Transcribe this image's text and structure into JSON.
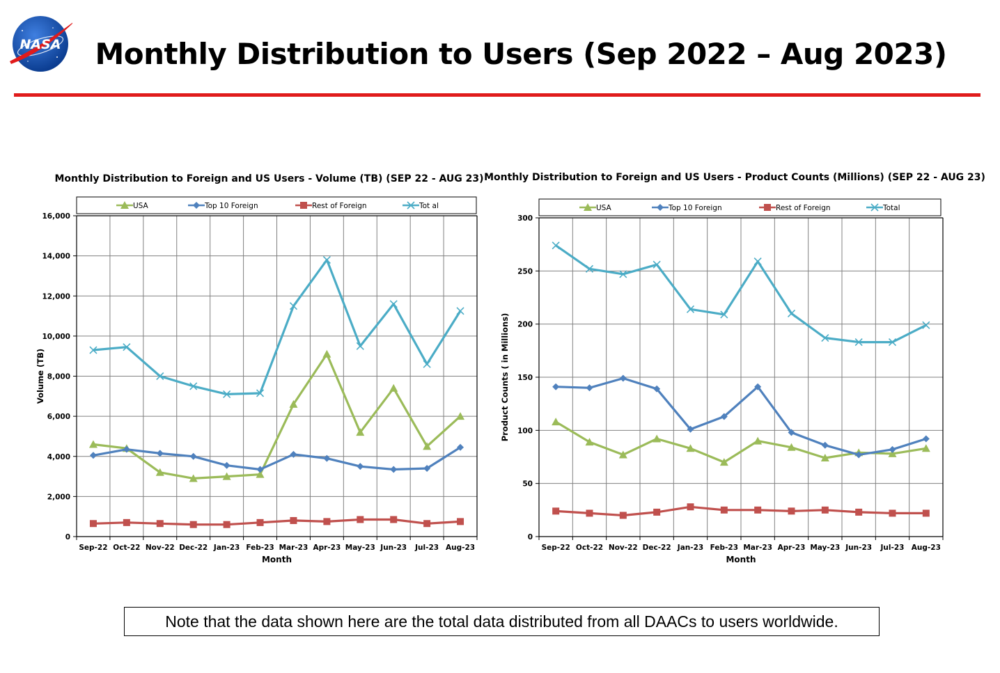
{
  "header": {
    "logo_text": "NASA",
    "title": "Monthly Distribution to Users (Sep 2022 – Aug 2023)",
    "rule_color": "#e01b1b"
  },
  "note": "Note that the data shown here are the total data distributed from all DAACs to users worldwide.",
  "chart_data": [
    {
      "type": "line",
      "title": "Monthly Distribution to Foreign and US Users - Volume  (TB) (SEP 22 - AUG 23)",
      "xlabel": "Month",
      "ylabel": "Volume (TB)",
      "categories": [
        "Sep-22",
        "Oct-22",
        "Nov-22",
        "Dec-22",
        "Jan-23",
        "Feb-23",
        "Mar-23",
        "Apr-23",
        "May-23",
        "Jun-23",
        "Jul-23",
        "Aug-23"
      ],
      "ylim": [
        0,
        16000
      ],
      "yticks": [
        0,
        2000,
        4000,
        6000,
        8000,
        10000,
        12000,
        14000,
        16000
      ],
      "ytick_labels": [
        "0",
        "2,000",
        "4,000",
        "6,000",
        "8,000",
        "10,000",
        "12,000",
        "14,000",
        "16,000"
      ],
      "grid": true,
      "legend": "top",
      "series": [
        {
          "name": "USA",
          "color": "#9bbb59",
          "marker": "triangle",
          "values": [
            4600,
            4400,
            3200,
            2900,
            3000,
            3100,
            6600,
            9100,
            5200,
            7400,
            4500,
            6000
          ]
        },
        {
          "name": "Top  10 Foreign",
          "color": "#4f81bd",
          "marker": "diamond",
          "values": [
            4050,
            4350,
            4150,
            4000,
            3550,
            3350,
            4100,
            3900,
            3500,
            3350,
            3400,
            4450
          ]
        },
        {
          "name": "Rest of Foreign",
          "color": "#c0504d",
          "marker": "square",
          "values": [
            650,
            700,
            650,
            600,
            600,
            700,
            800,
            750,
            850,
            850,
            650,
            750
          ]
        },
        {
          "name": "Tot al",
          "color": "#4bacc6",
          "marker": "x",
          "values": [
            9300,
            9450,
            8000,
            7500,
            7100,
            7150,
            11500,
            13800,
            9500,
            11600,
            8600,
            11250
          ]
        }
      ]
    },
    {
      "type": "line",
      "title": "Monthly Distribution to Foreign and US Users - Product Counts (Millions) (SEP 22 - AUG 23)",
      "xlabel": "Month",
      "ylabel": "Product Counts ( in Millions)",
      "categories": [
        "Sep-22",
        "Oct-22",
        "Nov-22",
        "Dec-22",
        "Jan-23",
        "Feb-23",
        "Mar-23",
        "Apr-23",
        "May-23",
        "Jun-23",
        "Jul-23",
        "Aug-23"
      ],
      "ylim": [
        0,
        300
      ],
      "yticks": [
        0,
        50,
        100,
        150,
        200,
        250,
        300
      ],
      "ytick_labels": [
        "0",
        "50",
        "100",
        "150",
        "200",
        "250",
        "300"
      ],
      "grid": true,
      "legend": "top",
      "series": [
        {
          "name": "USA",
          "color": "#9bbb59",
          "marker": "triangle",
          "values": [
            108,
            89,
            77,
            92,
            83,
            70,
            90,
            84,
            74,
            79,
            78,
            83
          ]
        },
        {
          "name": "Top 10 Foreign",
          "color": "#4f81bd",
          "marker": "diamond",
          "values": [
            141,
            140,
            149,
            139,
            101,
            113,
            141,
            98,
            86,
            77,
            82,
            92
          ]
        },
        {
          "name": "Rest of Foreign",
          "color": "#c0504d",
          "marker": "square",
          "values": [
            24,
            22,
            20,
            23,
            28,
            25,
            25,
            24,
            25,
            23,
            22,
            22
          ]
        },
        {
          "name": "Total",
          "color": "#4bacc6",
          "marker": "x",
          "values": [
            274,
            252,
            247,
            256,
            214,
            209,
            259,
            210,
            187,
            183,
            183,
            199
          ]
        }
      ]
    }
  ]
}
